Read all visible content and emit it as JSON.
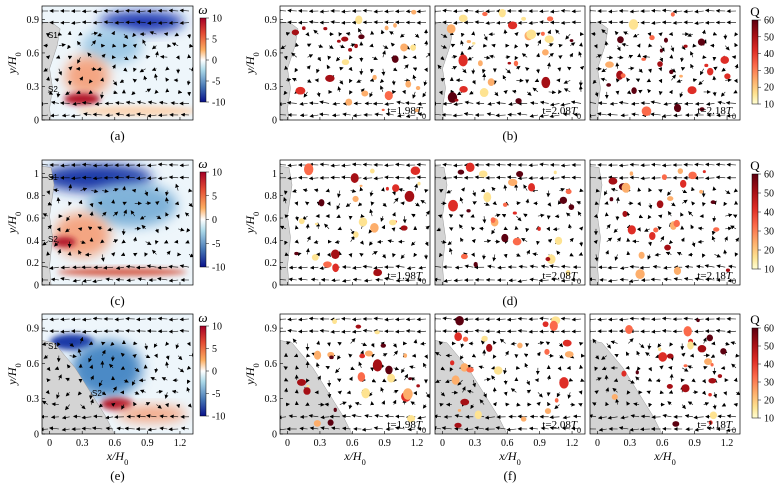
{
  "figure": {
    "rows": [
      {
        "id": "row-a",
        "vort_caption": "(a)",
        "q_caption": "(b)",
        "y_ticks": [
          "0",
          "0.3",
          "0.6",
          "0.9"
        ],
        "y_tick_values": [
          0,
          0.3,
          0.6,
          0.9
        ],
        "markers": {
          "s1": "S1",
          "s2": "S2"
        },
        "time_labels": [
          "t=1.98",
          "t=2.08",
          "t=2.18"
        ]
      },
      {
        "id": "row-c",
        "vort_caption": "(c)",
        "q_caption": "(d)",
        "y_ticks": [
          "0",
          "0.2",
          "0.4",
          "0.6",
          "0.8",
          "1"
        ],
        "y_tick_values": [
          0,
          0.2,
          0.4,
          0.6,
          0.8,
          1.0
        ],
        "markers": {
          "s1": "S1",
          "s2": "S2"
        },
        "time_labels": [
          "t=1.98",
          "t=2.08",
          "t=2.18"
        ]
      },
      {
        "id": "row-e",
        "vort_caption": "(e)",
        "q_caption": "(f)",
        "y_ticks": [
          "0",
          "0.3",
          "0.6",
          "0.9"
        ],
        "y_tick_values": [
          0,
          0.3,
          0.6,
          0.9
        ],
        "markers": {
          "s1": "S1",
          "s2": "S2"
        },
        "time_labels": [
          "t=1.98",
          "t=2.08",
          "t=2.18"
        ]
      }
    ],
    "time_unit": "T",
    "time_subscript": "0",
    "y_label": "y/H",
    "x_label": "x/H",
    "label_subscript": "0",
    "x_ticks": [
      "0",
      "0.3",
      "0.6",
      "0.9",
      "1.2"
    ],
    "x_tick_values": [
      0,
      0.3,
      0.6,
      0.9,
      1.2
    ],
    "vort_colorbar": {
      "title": "ω",
      "ticks": [
        "10",
        "5",
        "0",
        "-5",
        "-10"
      ],
      "tick_values": [
        10,
        5,
        0,
        -5,
        -10
      ],
      "colors": [
        "#a50026",
        "#e34a33",
        "#fdae61",
        "#ffffff",
        "#abd9e9",
        "#4575b4",
        "#08108a"
      ]
    },
    "q_colorbar": {
      "title": "Q",
      "ticks": [
        "60",
        "50",
        "40",
        "30",
        "20",
        "10"
      ],
      "tick_values": [
        60,
        50,
        40,
        30,
        20,
        10
      ],
      "colors": [
        "#5c0010",
        "#a50f15",
        "#de2d26",
        "#fb6a4a",
        "#fdae6b",
        "#fee391",
        "#ffffd4"
      ]
    }
  }
}
